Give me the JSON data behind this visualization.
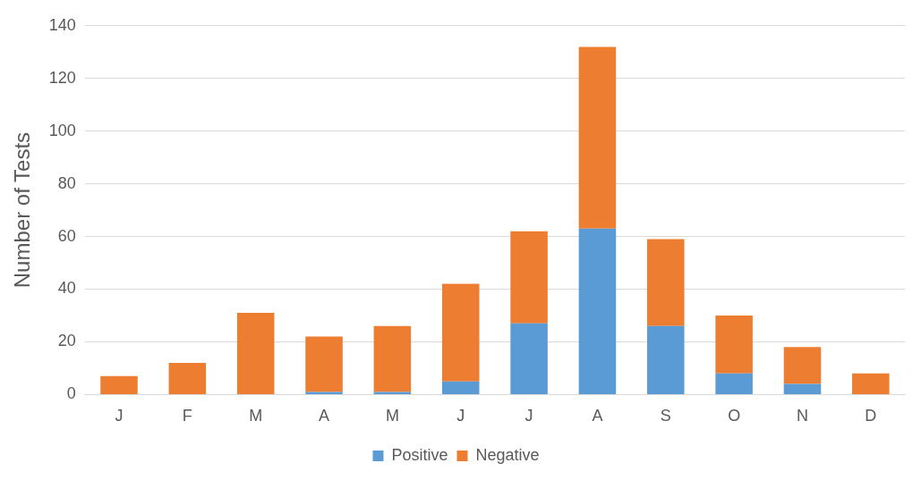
{
  "chart_data": {
    "type": "bar",
    "ylabel": "Number of Tests",
    "categories": [
      "J",
      "F",
      "M",
      "A",
      "M",
      "J",
      "J",
      "A",
      "S",
      "O",
      "N",
      "D"
    ],
    "stacked": true,
    "series": [
      {
        "name": "Positive",
        "color": "#5b9bd5",
        "values": [
          0,
          0,
          0,
          1,
          1,
          5,
          27,
          63,
          26,
          8,
          4,
          0
        ]
      },
      {
        "name": "Negative",
        "color": "#ed7d31",
        "values": [
          7,
          12,
          31,
          21,
          25,
          37,
          35,
          69,
          33,
          22,
          14,
          8
        ]
      }
    ],
    "ylim": [
      0,
      140
    ],
    "yticks": [
      0,
      20,
      40,
      60,
      80,
      100,
      120,
      140
    ],
    "grid": "y",
    "legend": "bottom"
  }
}
